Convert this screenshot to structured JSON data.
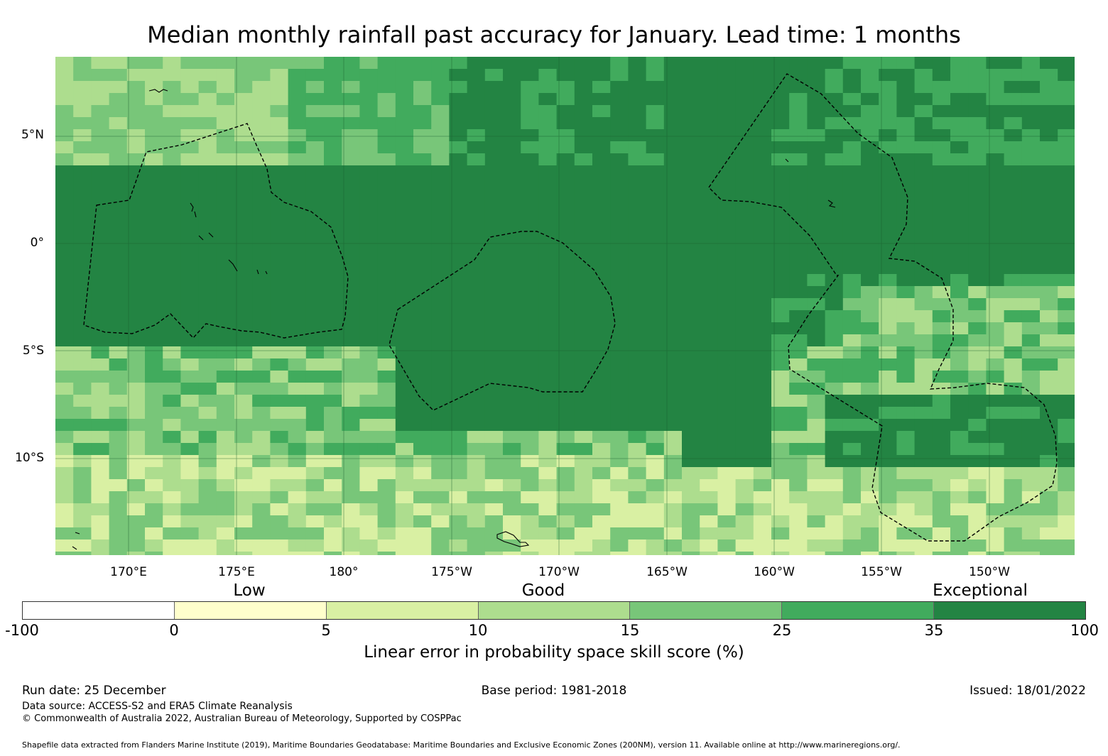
{
  "title": "Median monthly rainfall past accuracy for January. Lead time: 1 months",
  "map": {
    "lat_labels": [
      "5°N",
      "0°",
      "5°S",
      "10°S"
    ],
    "lon_labels": [
      "170°E",
      "175°E",
      "180°",
      "175°W",
      "170°W",
      "165°W",
      "160°W",
      "155°W",
      "150°W"
    ]
  },
  "colorbar": {
    "category_labels": [
      "Low",
      "Good",
      "Exceptional"
    ],
    "ticks": [
      "-100",
      "0",
      "5",
      "10",
      "15",
      "25",
      "35",
      "100"
    ],
    "colors": [
      "#ffffff",
      "#ffffcc",
      "#d9f0a3",
      "#addd8e",
      "#78c679",
      "#41ab5d",
      "#238443"
    ],
    "title": "Linear error in probability space skill score (%)"
  },
  "footer": {
    "run_date": "Run date: 25 December",
    "base_period": "Base period: 1981-2018",
    "issued": "Issued: 18/01/2022",
    "data_source": "Data source: ACCESS-S2 and ERA5 Climate Reanalysis",
    "copyright": "© Commonwealth of Australia 2022, Australian Bureau of Meteorology, Supported by COSPPac",
    "shapefile": "Shapefile data extracted from Flanders Marine Institute (2019), Maritime Boundaries Geodatabase: Maritime Boundaries and Exclusive Economic Zones (200NM), version 11. Available online at http://www.marineregions.org/."
  }
}
